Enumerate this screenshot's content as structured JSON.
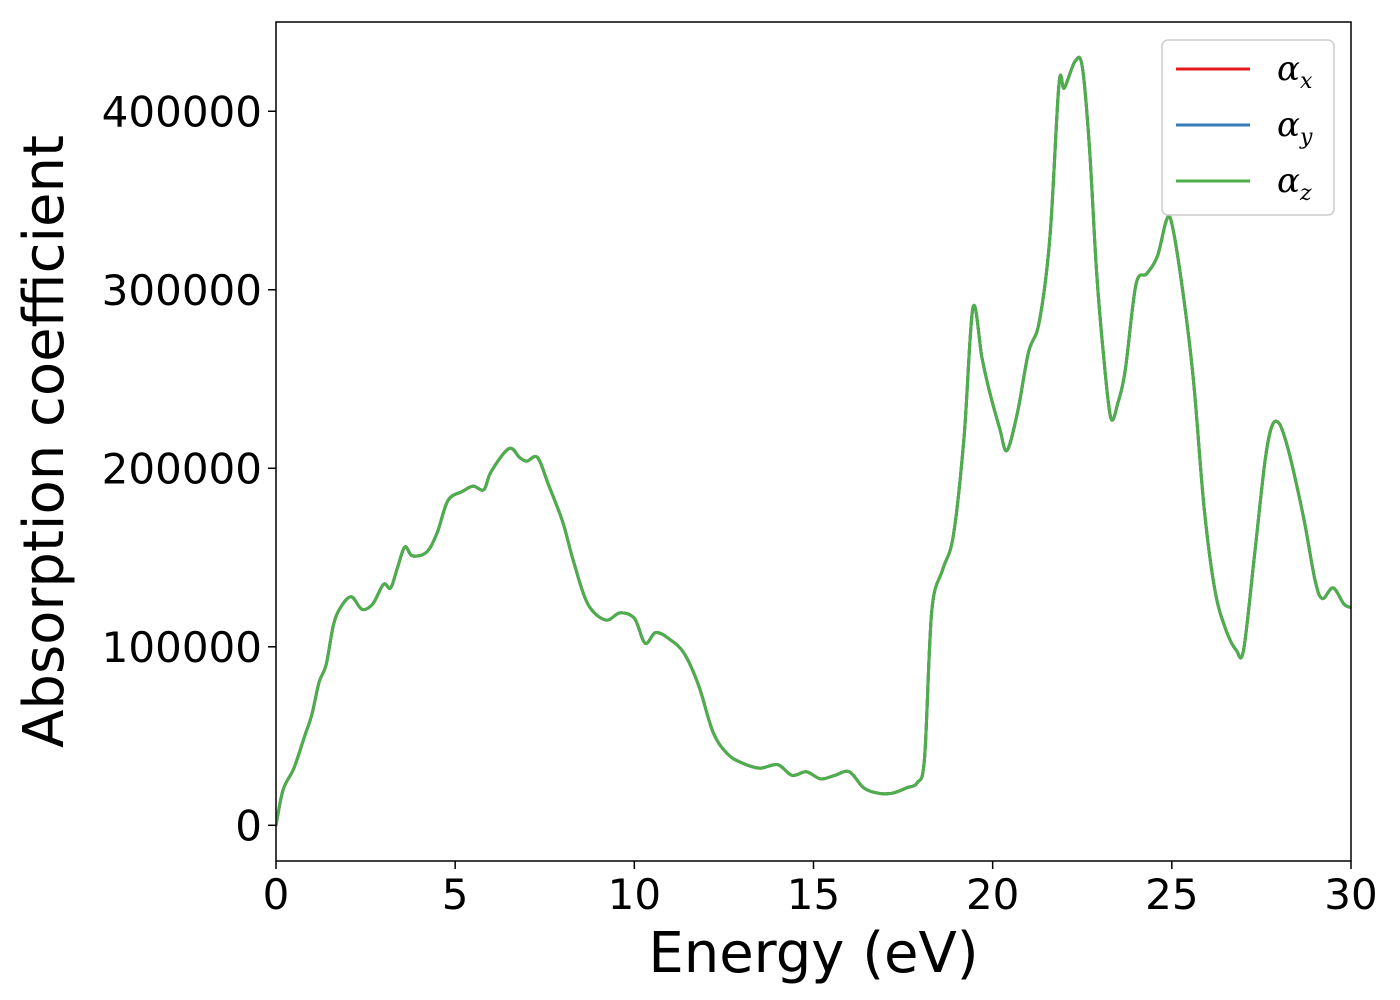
{
  "chart_data": {
    "type": "line",
    "title": "",
    "xlabel": "Energy (eV)",
    "ylabel": "Absorption coefficient",
    "xlim": [
      0,
      30
    ],
    "ylim": [
      -20000,
      450000
    ],
    "xticks": [
      0,
      5,
      10,
      15,
      20,
      25,
      30
    ],
    "yticks": [
      0,
      100000,
      200000,
      300000,
      400000
    ],
    "grid": false,
    "legend_position": "top-right",
    "series": [
      {
        "name": "α_x",
        "symbol": "α",
        "subscript": "x",
        "color": "#e41a1c"
      },
      {
        "name": "α_y",
        "symbol": "α",
        "subscript": "y",
        "color": "#377eb8"
      },
      {
        "name": "α_z",
        "symbol": "α",
        "subscript": "z",
        "color": "#4daf4a"
      }
    ],
    "note_series_overlap": "all three series overlap exactly; shared values below",
    "x": [
      0,
      0.2,
      0.5,
      0.8,
      1.0,
      1.2,
      1.4,
      1.6,
      1.8,
      2.1,
      2.4,
      2.7,
      3.0,
      3.2,
      3.4,
      3.6,
      3.8,
      4.2,
      4.5,
      4.8,
      5.2,
      5.5,
      5.8,
      6.0,
      6.5,
      6.8,
      7.0,
      7.3,
      7.6,
      8.0,
      8.3,
      8.7,
      9.2,
      9.6,
      10.0,
      10.3,
      10.6,
      11.0,
      11.4,
      11.8,
      12.2,
      12.6,
      13.0,
      13.5,
      14.0,
      14.4,
      14.8,
      15.2,
      15.6,
      16.0,
      16.4,
      16.8,
      17.2,
      17.6,
      17.9,
      18.1,
      18.3,
      18.6,
      18.9,
      19.2,
      19.45,
      19.7,
      19.9,
      20.2,
      20.4,
      20.7,
      21.0,
      21.3,
      21.6,
      21.85,
      22.0,
      22.3,
      22.5,
      22.7,
      22.9,
      23.1,
      23.3,
      23.5,
      23.7,
      24.0,
      24.3,
      24.6,
      24.85,
      25.0,
      25.3,
      25.6,
      25.9,
      26.2,
      26.5,
      26.8,
      27.0,
      27.3,
      27.6,
      27.8,
      28.0,
      28.2,
      28.4,
      28.7,
      29.0,
      29.2,
      29.5,
      29.8,
      30.0
    ],
    "values": [
      0,
      20000,
      32000,
      50000,
      62000,
      80000,
      90000,
      112000,
      122000,
      128000,
      121000,
      124000,
      135000,
      133000,
      145000,
      156000,
      151000,
      153000,
      164000,
      182000,
      187000,
      190000,
      188000,
      198000,
      211000,
      206000,
      204000,
      206000,
      191000,
      170000,
      148000,
      124000,
      115000,
      119000,
      116000,
      102000,
      108000,
      104000,
      96000,
      78000,
      52000,
      40000,
      35000,
      32000,
      34000,
      28000,
      30000,
      26000,
      28000,
      30000,
      21000,
      18000,
      18000,
      21000,
      24000,
      38000,
      120000,
      143000,
      162000,
      217000,
      290000,
      262000,
      244000,
      222000,
      210000,
      232000,
      265000,
      282000,
      330000,
      415000,
      413000,
      428000,
      425000,
      380000,
      310000,
      262000,
      228000,
      237000,
      255000,
      303000,
      309000,
      319000,
      339000,
      337000,
      300000,
      250000,
      178000,
      132000,
      110000,
      98000,
      98000,
      150000,
      204000,
      224000,
      225000,
      214000,
      198000,
      170000,
      137000,
      127000,
      133000,
      124000,
      122000
    ]
  }
}
